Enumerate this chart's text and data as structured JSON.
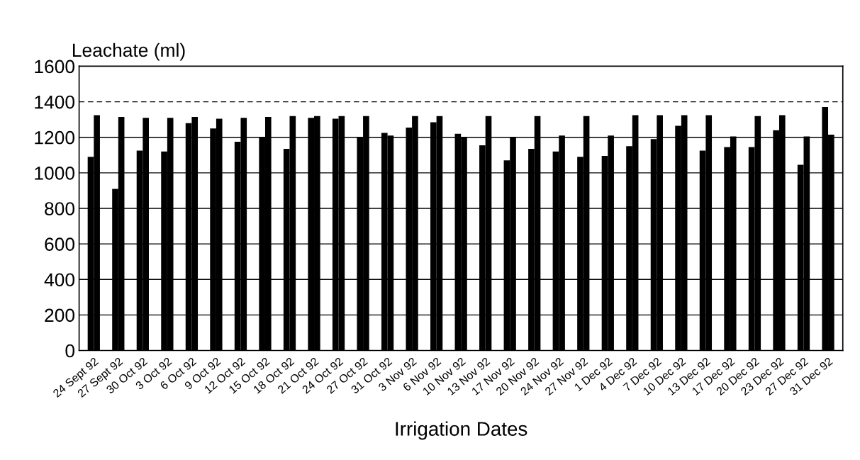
{
  "chart_data": {
    "type": "bar",
    "ylabel": "Leachate (ml)",
    "xlabel": "Irrigation Dates",
    "categories": [
      "24 Sept 92",
      "27 Sept 92",
      "30 Oct 92",
      "3 Oct 92",
      "6 Oct 92",
      "9 Oct 92",
      "12 Oct 92",
      "15 Oct 92",
      "18 Oct 92",
      "21 Oct 92",
      "24 Oct 92",
      "27 Oct 92",
      "31 Oct 92",
      "3 Nov 92",
      "6 Nov 92",
      "10 Nov 92",
      "13 Nov 92",
      "17 Nov 92",
      "20 Nov 92",
      "24 Nov 92",
      "27 Nov 92",
      "1 Dec 92",
      "4 Dec 92",
      "7 Dec 92",
      "10 Dec 92",
      "13 Dec 92",
      "17 Dec 92",
      "20 Dec 92",
      "23 Dec 92",
      "27 Dec 92",
      "31 Dec 92"
    ],
    "series": [
      {
        "color": "#000000",
        "values": [
          1090,
          910,
          1125,
          1120,
          1280,
          1250,
          1175,
          1200,
          1135,
          1310,
          1305,
          1200,
          1225,
          1255,
          1285,
          1220,
          1155,
          1070,
          1135,
          1120,
          1090,
          1095,
          1150,
          1190,
          1265,
          1125,
          1145,
          1145,
          1240,
          1045,
          1370
        ]
      },
      {
        "color": "#000000",
        "values": [
          1325,
          1315,
          1310,
          1310,
          1315,
          1305,
          1310,
          1315,
          1320,
          1320,
          1320,
          1320,
          1210,
          1320,
          1320,
          1200,
          1320,
          1200,
          1320,
          1210,
          1320,
          1210,
          1325,
          1325,
          1325,
          1325,
          1205,
          1320,
          1325,
          1205,
          1215
        ]
      }
    ],
    "ylim": [
      0,
      1600
    ],
    "yticks": [
      0,
      200,
      400,
      600,
      800,
      1000,
      1200,
      1400,
      1600
    ],
    "grid": "y",
    "ref_lines": [
      {
        "axis": "y",
        "value": 1400,
        "label": null,
        "color": "#000000",
        "line_style": "dashed"
      }
    ],
    "legend": false
  }
}
